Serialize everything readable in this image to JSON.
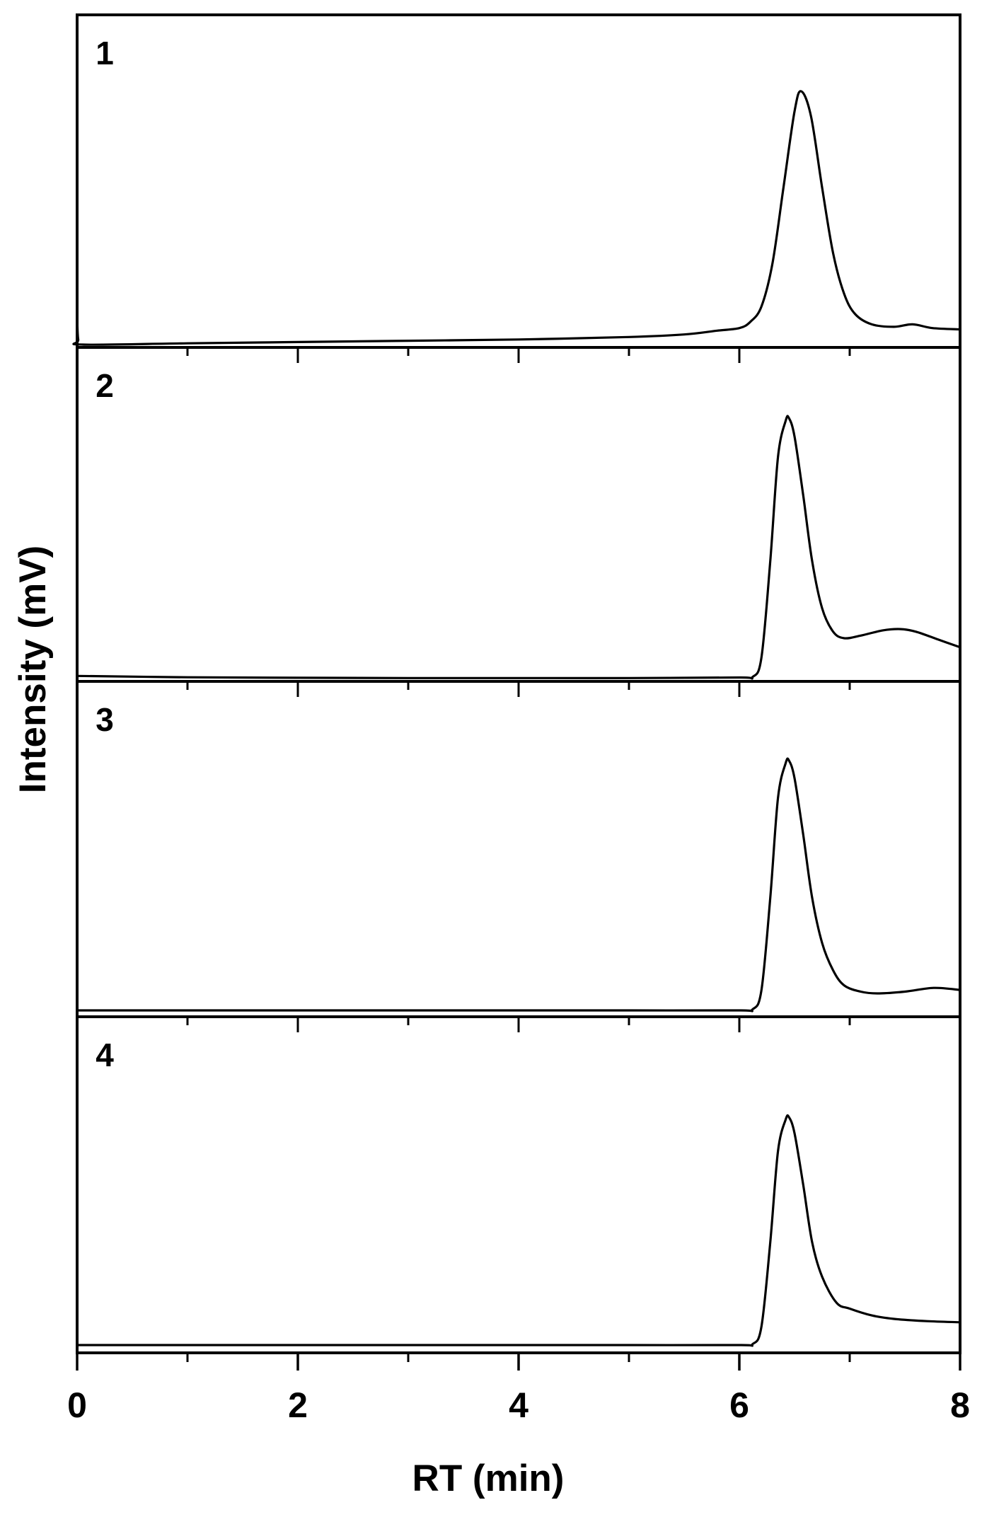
{
  "chart_data": {
    "type": "line",
    "layout": "stacked-panels",
    "title": "",
    "xlabel": "RT (min)",
    "ylabel": "Intensity (mV)",
    "xlim": [
      0,
      8
    ],
    "x_major_ticks": [
      0,
      2,
      4,
      6,
      8
    ],
    "x_minor_ticks": [
      1,
      3,
      5,
      7
    ],
    "x_tick_labels": [
      "0",
      "2",
      "4",
      "6",
      "8"
    ],
    "y_ticks": [],
    "y_units": "relative (normalized, no tick labels)",
    "grid": false,
    "legend": null,
    "line_color": "#000000",
    "panels": [
      {
        "label": "1",
        "peak_rt": 6.56,
        "series": {
          "name": "1",
          "x": [
            0.0,
            0.01,
            0.05,
            1.0,
            2.0,
            3.0,
            4.0,
            5.0,
            5.5,
            5.8,
            6.0,
            6.1,
            6.2,
            6.3,
            6.4,
            6.5,
            6.56,
            6.65,
            6.75,
            6.85,
            6.95,
            7.05,
            7.2,
            7.4,
            7.57,
            7.75,
            8.0
          ],
          "y": [
            0.12,
            0.02,
            0.0,
            0.005,
            0.01,
            0.015,
            0.02,
            0.03,
            0.04,
            0.055,
            0.065,
            0.09,
            0.15,
            0.32,
            0.62,
            0.92,
            1.0,
            0.9,
            0.62,
            0.36,
            0.2,
            0.12,
            0.08,
            0.07,
            0.08,
            0.065,
            0.06
          ]
        }
      },
      {
        "label": "2",
        "peak_rt": 6.45,
        "series": {
          "name": "2",
          "x": [
            0.0,
            1.0,
            2.0,
            3.0,
            4.0,
            5.0,
            6.0,
            6.12,
            6.2,
            6.28,
            6.35,
            6.42,
            6.45,
            6.5,
            6.58,
            6.66,
            6.75,
            6.85,
            6.95,
            7.1,
            7.3,
            7.46,
            7.6,
            7.8,
            8.0
          ],
          "y": [
            0.01,
            0.005,
            0.003,
            0.002,
            0.002,
            0.002,
            0.004,
            0.006,
            0.08,
            0.45,
            0.85,
            0.99,
            1.0,
            0.93,
            0.7,
            0.45,
            0.27,
            0.18,
            0.155,
            0.165,
            0.185,
            0.19,
            0.18,
            0.15,
            0.12
          ]
        }
      },
      {
        "label": "3",
        "peak_rt": 6.45,
        "series": {
          "name": "3",
          "x": [
            0.0,
            1.0,
            2.0,
            3.0,
            4.0,
            5.0,
            6.0,
            6.12,
            6.2,
            6.28,
            6.35,
            6.42,
            6.45,
            6.5,
            6.58,
            6.66,
            6.75,
            6.85,
            6.95,
            7.1,
            7.25,
            7.5,
            7.76,
            8.0
          ],
          "y": [
            0.0,
            0.0,
            0.0,
            0.0,
            0.0,
            0.0,
            0.0,
            0.004,
            0.08,
            0.45,
            0.85,
            0.99,
            1.0,
            0.93,
            0.7,
            0.45,
            0.27,
            0.16,
            0.1,
            0.075,
            0.068,
            0.075,
            0.09,
            0.082
          ]
        }
      },
      {
        "label": "4",
        "peak_rt": 6.45,
        "series": {
          "name": "4",
          "x": [
            0.0,
            1.0,
            2.0,
            3.0,
            4.0,
            5.0,
            6.0,
            6.12,
            6.2,
            6.28,
            6.35,
            6.42,
            6.45,
            6.5,
            6.58,
            6.66,
            6.75,
            6.88,
            7.0,
            7.2,
            7.4,
            7.7,
            8.0
          ],
          "y": [
            0.0,
            0.0,
            0.0,
            0.0,
            0.0,
            0.0,
            0.0,
            0.004,
            0.08,
            0.45,
            0.85,
            0.99,
            1.0,
            0.93,
            0.7,
            0.45,
            0.3,
            0.186,
            0.16,
            0.13,
            0.115,
            0.105,
            0.1
          ]
        }
      }
    ]
  }
}
